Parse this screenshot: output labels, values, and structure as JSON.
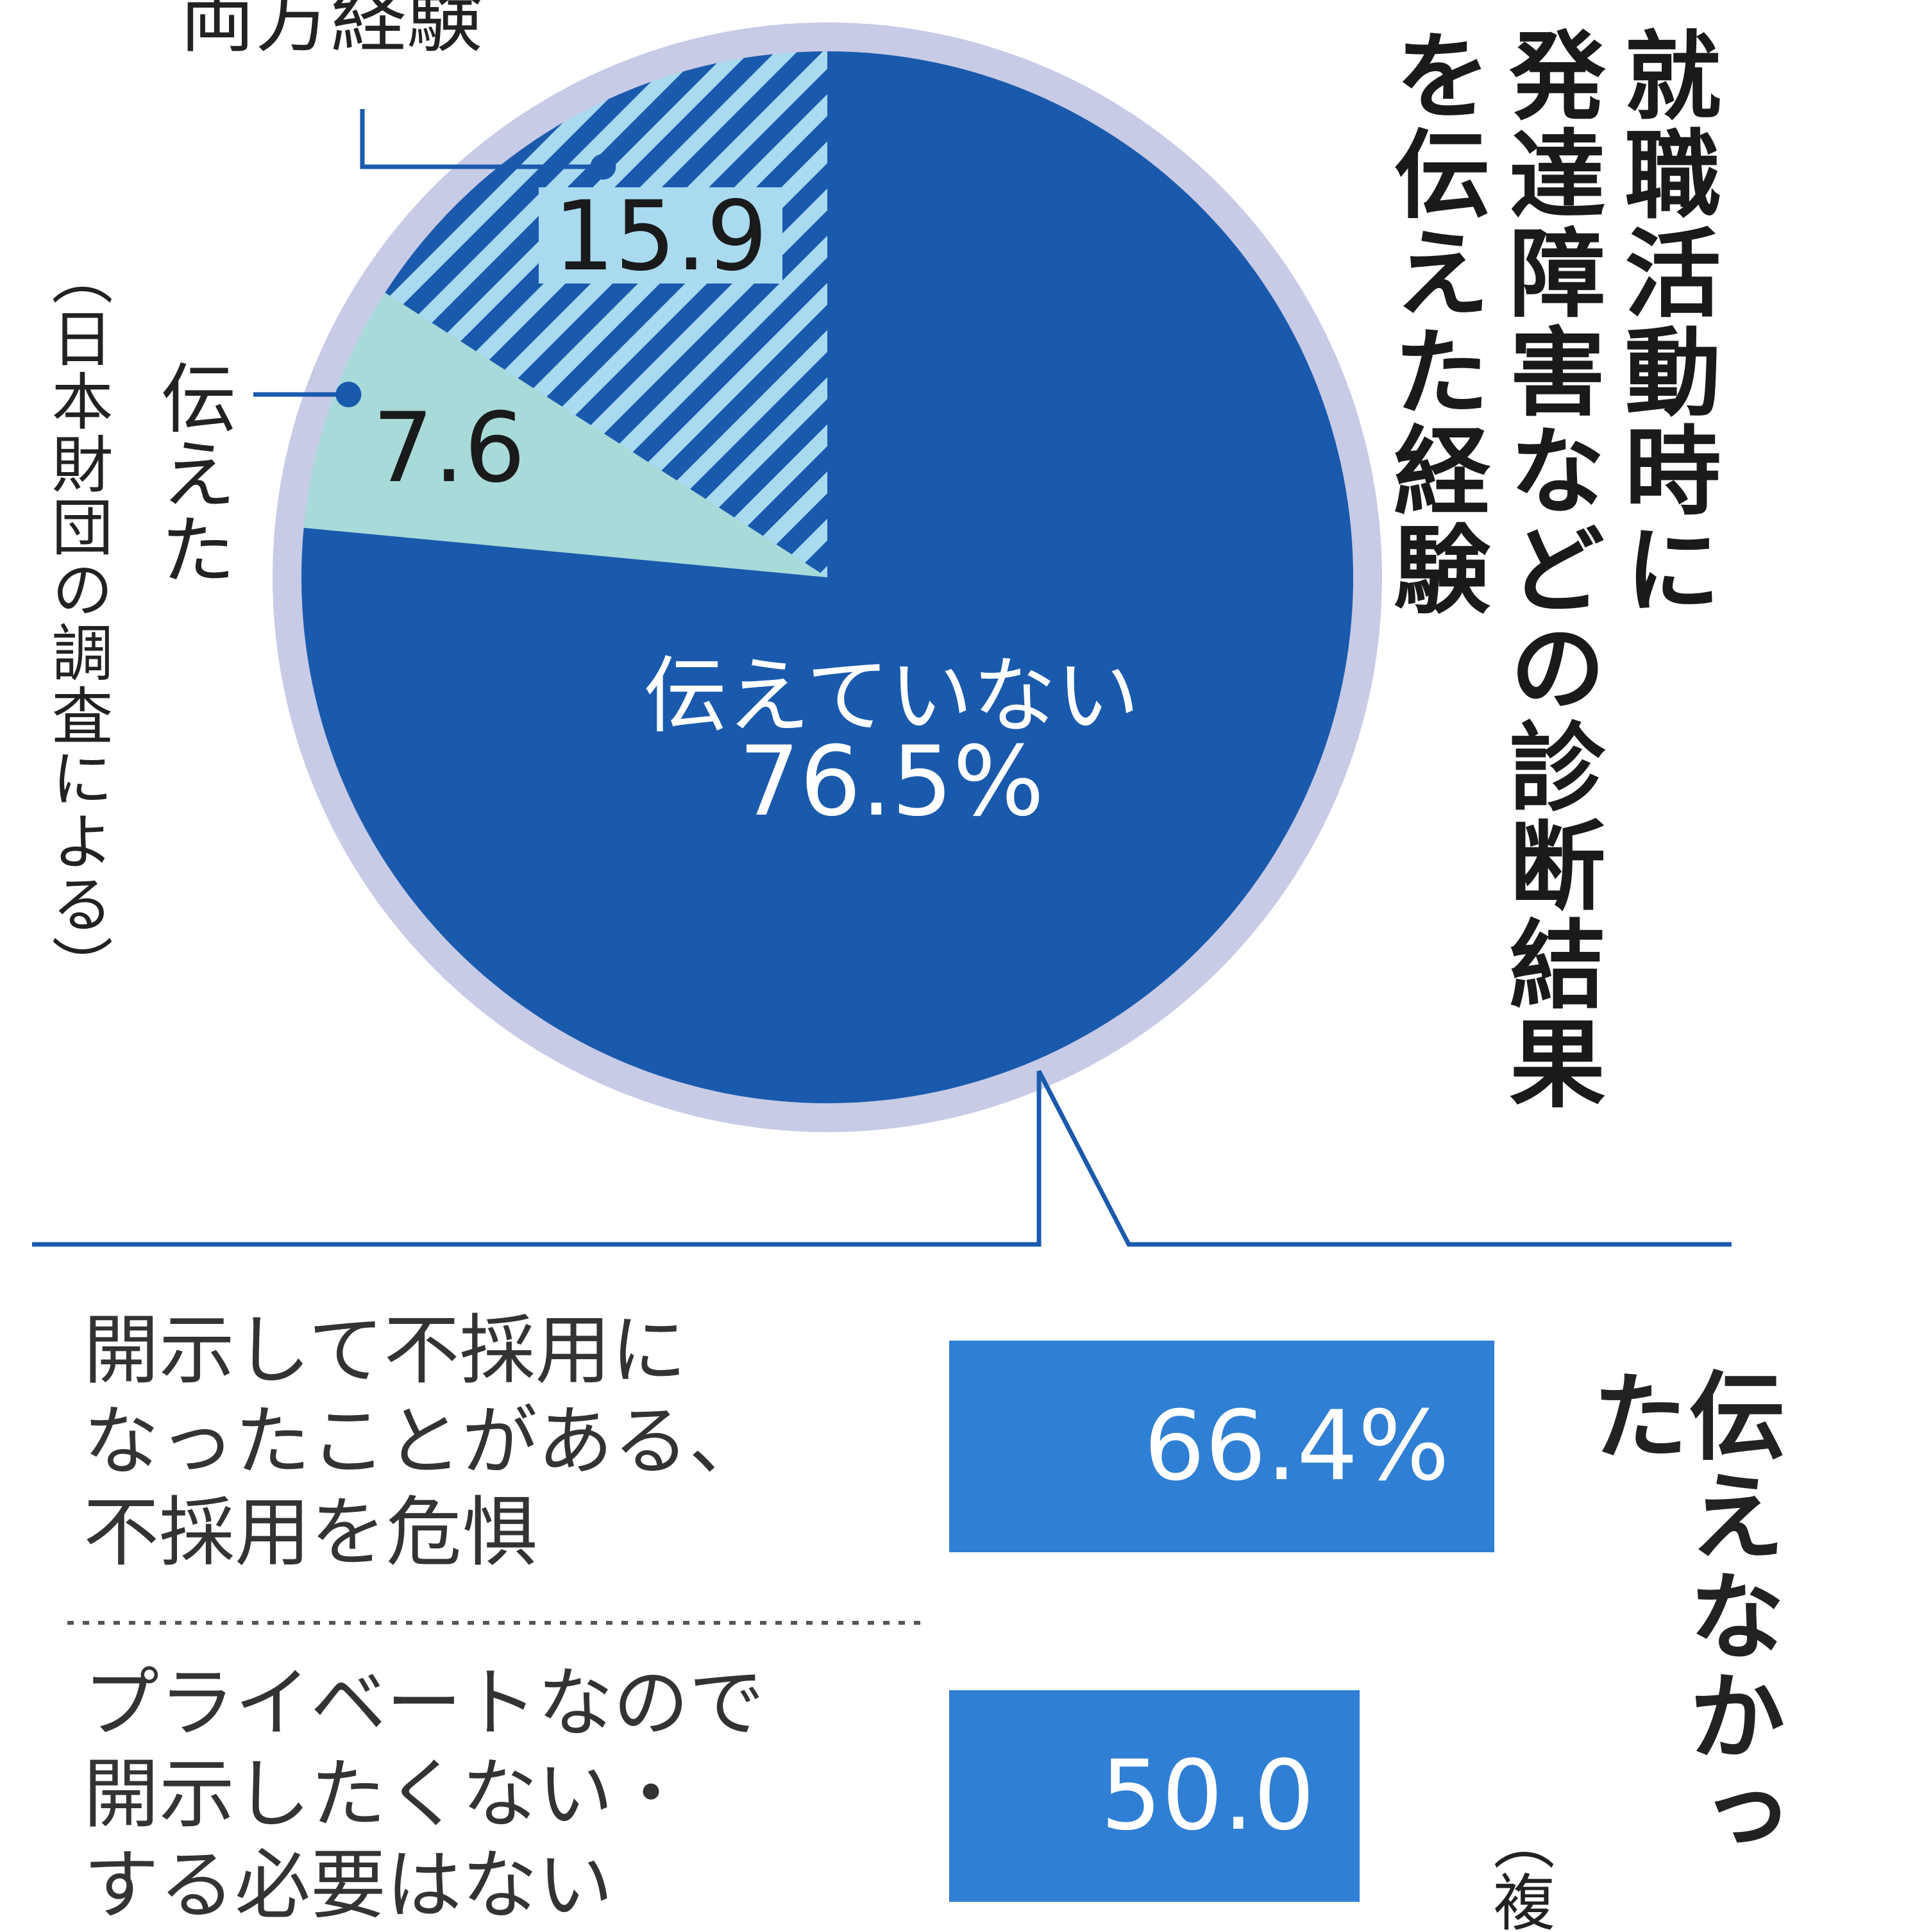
{
  "title_lines": [
    "就職活動時に",
    "発達障害などの診断結果",
    "を伝えた経験"
  ],
  "source": "（日本財団の調査による）",
  "chart_data": [
    {
      "type": "pie",
      "title": "就職活動時に発達障害などの診断結果を伝えた経験",
      "slices": [
        {
          "label": "伝えていない",
          "value": 76.5,
          "value_label": "76.5%",
          "color": "#1a5aad"
        },
        {
          "label": "伝えた",
          "value": 7.6,
          "value_label": "7.6",
          "color": "#a7dad9"
        },
        {
          "label": "両方経験",
          "value": 15.9,
          "value_label": "15.9",
          "color": "#1a5aad",
          "pattern": "diagonal-stripes",
          "stripe_color": "#a9daf0"
        }
      ]
    },
    {
      "type": "bar",
      "title": "伝えなかった",
      "note": "（複",
      "categories": [
        "開示して不採用になったことがある、不採用を危惧",
        "プライベートなので開示したくない・する必要はない"
      ],
      "category_lines": [
        [
          "開示して不採用に",
          "なったことがある、",
          "不採用を危惧"
        ],
        [
          "プライベートなので",
          "開示したくない・",
          "する必要はない"
        ]
      ],
      "values": [
        66.4,
        50.0
      ],
      "value_labels": [
        "66.4%",
        "50.0"
      ],
      "color": "#2f7fd4"
    }
  ]
}
